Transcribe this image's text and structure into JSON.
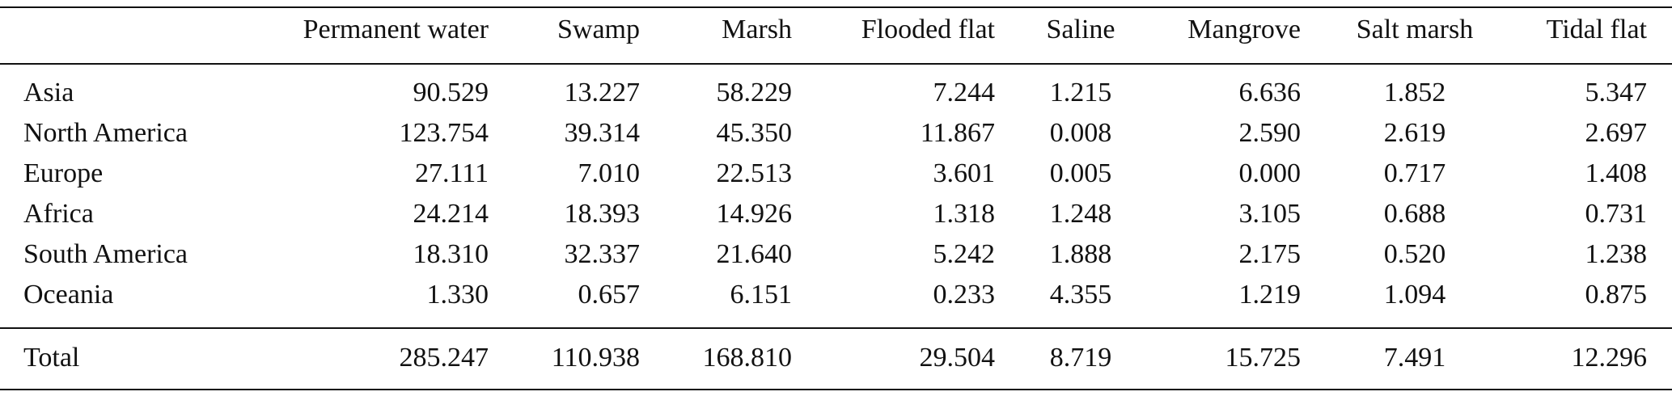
{
  "table": {
    "columns": [
      "Permanent water",
      "Swamp",
      "Marsh",
      "Flooded flat",
      "Saline",
      "Mangrove",
      "Salt marsh",
      "Tidal flat"
    ],
    "rows": [
      {
        "label": "Asia",
        "values": [
          "90.529",
          "13.227",
          "58.229",
          "7.244",
          "1.215",
          "6.636",
          "1.852",
          "5.347"
        ]
      },
      {
        "label": "North America",
        "values": [
          "123.754",
          "39.314",
          "45.350",
          "11.867",
          "0.008",
          "2.590",
          "2.619",
          "2.697"
        ]
      },
      {
        "label": "Europe",
        "values": [
          "27.111",
          "7.010",
          "22.513",
          "3.601",
          "0.005",
          "0.000",
          "0.717",
          "1.408"
        ]
      },
      {
        "label": "Africa",
        "values": [
          "24.214",
          "18.393",
          "14.926",
          "1.318",
          "1.248",
          "3.105",
          "0.688",
          "0.731"
        ]
      },
      {
        "label": "South America",
        "values": [
          "18.310",
          "32.337",
          "21.640",
          "5.242",
          "1.888",
          "2.175",
          "0.520",
          "1.238"
        ]
      },
      {
        "label": "Oceania",
        "values": [
          "1.330",
          "0.657",
          "6.151",
          "0.233",
          "4.355",
          "1.219",
          "1.094",
          "0.875"
        ]
      }
    ],
    "total": {
      "label": "Total",
      "values": [
        "285.247",
        "110.938",
        "168.810",
        "29.504",
        "8.719",
        "15.725",
        "7.491",
        "12.296"
      ]
    }
  }
}
